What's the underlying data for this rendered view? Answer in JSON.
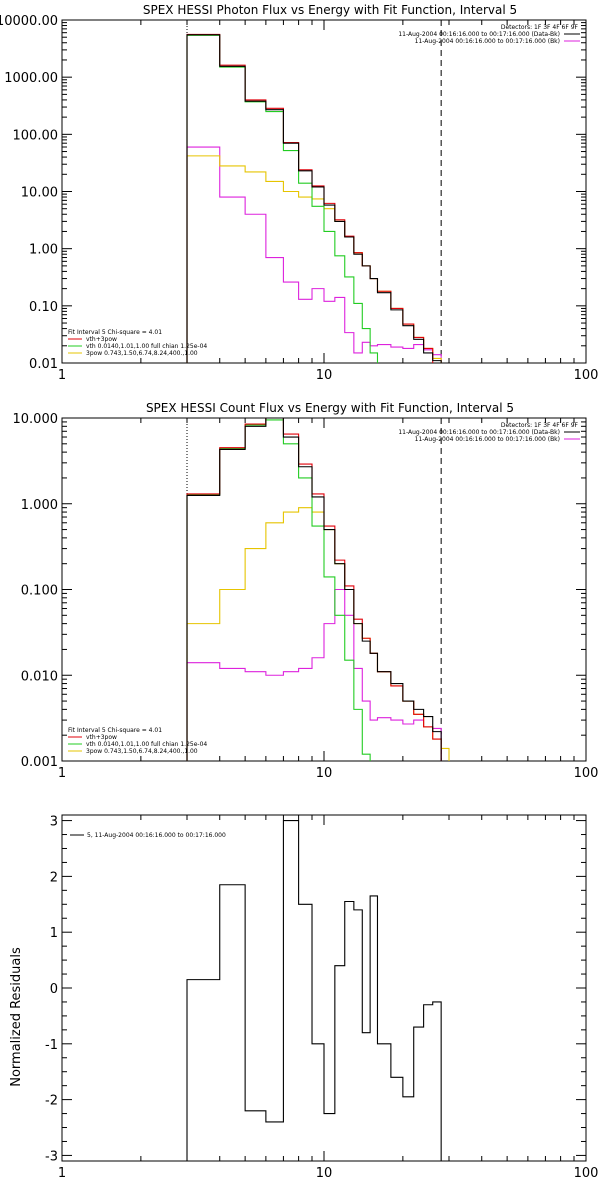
{
  "colors": {
    "data_black": "#000000",
    "vth_plus_3pow_red": "#e0000a",
    "vth_green": "#22cc22",
    "three_pow_yellow": "#e6c400",
    "bk_magenta": "#dd22dd"
  },
  "chart_data": [
    {
      "type": "line",
      "style": "histogram",
      "title": "SPEX HESSI Photon Flux vs Energy with Fit Function, Interval 5",
      "xscale": "log",
      "yscale": "log",
      "xlim": [
        1,
        100
      ],
      "ylim": [
        0.01,
        10000
      ],
      "x_tick_labels": [
        "1",
        "10",
        "100"
      ],
      "y_tick_labels": [
        "0.01",
        "0.10",
        "1.00",
        "10.00",
        "100.00",
        "1000.00",
        "10000.00"
      ],
      "x_tick_values": [
        1,
        10,
        100
      ],
      "y_tick_values": [
        0.01,
        0.1,
        1,
        10,
        100,
        1000,
        10000
      ],
      "vlines": [
        {
          "x": 3,
          "style": "dotted"
        },
        {
          "x": 28,
          "style": "dashed"
        }
      ],
      "legend_top_right": [
        {
          "text": "Detectors: 1F 3F 4F 6F 9F",
          "color": "#000000",
          "line": false
        },
        {
          "text": "11-Aug-2004 00:16:16.000 to 00:17:16.000 (Data-Bk)",
          "color": "#000000",
          "line": true
        },
        {
          "text": "11-Aug-2004 00:16:16.000 to 00:17:16.000 (Bk)",
          "color": "#dd22dd",
          "line": true
        }
      ],
      "legend_bottom_left": [
        {
          "text": "Fit Interval 5   Chi-square = 4.01",
          "color": "#000000",
          "line": false
        },
        {
          "text": "vth+3pow",
          "color": "#e0000a",
          "line": true
        },
        {
          "text": "vth 0.0140,1.01,1.00  full chian 1.25e-04",
          "color": "#22cc22",
          "line": true
        },
        {
          "text": "3pow 0.743,1.50,6.74,8.24,400.,1.00",
          "color": "#e6c400",
          "line": true
        }
      ],
      "edges": [
        3.0,
        4.0,
        5.0,
        6.0,
        7.0,
        8.0,
        9.0,
        10.0,
        11.0,
        12.0,
        13.0,
        14.0,
        15.0,
        16.0,
        18.0,
        20.0,
        22.0,
        24.0,
        26.0,
        28.0,
        30.0
      ],
      "series": [
        {
          "name": "Data-Bk",
          "color": "#000000",
          "values": [
            5500,
            1550,
            380,
            270,
            70,
            23,
            12,
            5.8,
            3.0,
            1.6,
            0.8,
            0.5,
            0.3,
            0.17,
            0.085,
            0.045,
            0.026,
            0.015,
            0.011
          ]
        },
        {
          "name": "vth+3pow",
          "color": "#e0000a",
          "values": [
            5600,
            1620,
            400,
            285,
            72,
            24,
            12.5,
            6.2,
            3.2,
            1.65,
            0.85,
            0.5,
            0.3,
            0.18,
            0.09,
            0.048,
            0.028,
            0.018
          ]
        },
        {
          "name": "vth",
          "color": "#22cc22",
          "values": [
            5400,
            1500,
            370,
            250,
            52,
            14,
            5.5,
            2.0,
            0.75,
            0.32,
            0.11,
            0.04,
            0.015
          ]
        },
        {
          "name": "3pow",
          "color": "#e6c400",
          "values": [
            42,
            28,
            22,
            15,
            10,
            8,
            7.4,
            5.0,
            3.0,
            1.6,
            0.85,
            0.5,
            0.3,
            0.18,
            0.09,
            0.048,
            0.028,
            0.018,
            0.012
          ]
        },
        {
          "name": "Bk",
          "color": "#dd22dd",
          "values": [
            60,
            8,
            4,
            0.7,
            0.26,
            0.13,
            0.2,
            0.12,
            0.14,
            0.034,
            0.015,
            0.023,
            0.02,
            0.021,
            0.019,
            0.018,
            0.021,
            0.017,
            0.014
          ]
        }
      ]
    },
    {
      "type": "line",
      "style": "histogram",
      "title": "SPEX HESSI Count Flux vs Energy with Fit Function, Interval 5",
      "xscale": "log",
      "yscale": "log",
      "xlim": [
        1,
        100
      ],
      "ylim": [
        0.001,
        10
      ],
      "x_tick_labels": [
        "1",
        "10",
        "100"
      ],
      "y_tick_labels": [
        "0.001",
        "0.010",
        "0.100",
        "1.000",
        "10.000"
      ],
      "x_tick_values": [
        1,
        10,
        100
      ],
      "y_tick_values": [
        0.001,
        0.01,
        0.1,
        1,
        10
      ],
      "vlines": [
        {
          "x": 3,
          "style": "dotted"
        },
        {
          "x": 28,
          "style": "dashed"
        }
      ],
      "legend_top_right": [
        {
          "text": "Detectors: 1F 3F 4F 6F 9F",
          "color": "#000000",
          "line": false
        },
        {
          "text": "11-Aug-2004 00:16:16.000 to 00:17:16.000 (Data-Bk)",
          "color": "#000000",
          "line": true
        },
        {
          "text": "11-Aug-2004 00:16:16.000 to 00:17:16.000 (Bk)",
          "color": "#dd22dd",
          "line": true
        }
      ],
      "legend_bottom_left": [
        {
          "text": "Fit Interval 5   Chi-square = 4.01",
          "color": "#000000",
          "line": false
        },
        {
          "text": "vth+3pow",
          "color": "#e0000a",
          "line": true
        },
        {
          "text": "vth 0.0140,1.01,1.00  full chian 1.25e-04",
          "color": "#22cc22",
          "line": true
        },
        {
          "text": "3pow 0.743,1.50,6.74,8.24,400.,1.00",
          "color": "#e6c400",
          "line": true
        }
      ],
      "edges": [
        3.0,
        4.0,
        5.0,
        6.0,
        7.0,
        8.0,
        9.0,
        10.0,
        11.0,
        12.0,
        13.0,
        14.0,
        15.0,
        16.0,
        18.0,
        20.0,
        22.0,
        24.0,
        26.0,
        28.0,
        30.0
      ],
      "series": [
        {
          "name": "Data-Bk",
          "color": "#000000",
          "values": [
            1.25,
            4.3,
            8.0,
            10.0,
            6.0,
            2.7,
            1.2,
            0.5,
            0.2,
            0.1,
            0.04,
            0.025,
            0.018,
            0.011,
            0.008,
            0.005,
            0.004,
            0.0033,
            0.0022
          ]
        },
        {
          "name": "vth+3pow",
          "color": "#e0000a",
          "values": [
            1.3,
            4.5,
            8.5,
            10.5,
            6.5,
            2.9,
            1.3,
            0.55,
            0.22,
            0.11,
            0.045,
            0.027,
            0.018,
            0.011,
            0.0075,
            0.005,
            0.0035,
            0.0025,
            0.0018
          ]
        },
        {
          "name": "vth",
          "color": "#22cc22",
          "values": [
            1.28,
            4.4,
            8.3,
            9.5,
            5.0,
            2.0,
            0.55,
            0.14,
            0.05,
            0.015,
            0.004,
            0.0012
          ]
        },
        {
          "name": "3pow",
          "color": "#e6c400",
          "values": [
            0.04,
            0.1,
            0.3,
            0.6,
            0.8,
            0.9,
            0.8,
            0.5,
            0.2,
            0.1,
            0.04,
            0.027,
            0.018,
            0.011,
            0.0075,
            0.005,
            0.0035,
            0.0025,
            0.0018,
            0.0014
          ]
        },
        {
          "name": "Bk",
          "color": "#dd22dd",
          "values": [
            0.014,
            0.012,
            0.011,
            0.01,
            0.011,
            0.012,
            0.016,
            0.04,
            0.1,
            0.05,
            0.012,
            0.005,
            0.003,
            0.0032,
            0.003,
            0.0027,
            0.003,
            0.0025,
            0.0024
          ]
        }
      ]
    },
    {
      "type": "line",
      "style": "histogram",
      "title": "",
      "ylabel": "Normalized Residuals",
      "xscale": "log",
      "yscale": "linear",
      "xlim": [
        1,
        100
      ],
      "ylim": [
        -3.1,
        3.1
      ],
      "x_tick_labels": [
        "1",
        "10",
        "100"
      ],
      "y_tick_labels": [
        "3",
        "2",
        "1",
        "0",
        "-1",
        "-2",
        "-3"
      ],
      "x_tick_values": [
        1,
        10,
        100
      ],
      "y_tick_values": [
        3,
        2,
        1,
        0,
        -1,
        -2,
        -3
      ],
      "legend_top_left": [
        {
          "text": "5, 11-Aug-2004 00:16:16.000 to 00:17:16.000",
          "color": "#000000",
          "line": true
        }
      ],
      "edges": [
        3.0,
        4.0,
        5.0,
        6.0,
        7.0,
        8.0,
        9.0,
        10.0,
        11.0,
        12.0,
        13.0,
        14.0,
        15.0,
        16.0,
        18.0,
        20.0,
        22.0,
        24.0,
        26.0,
        28.0
      ],
      "series": [
        {
          "name": "",
          "color": "#000000",
          "values": [
            0.15,
            1.85,
            -2.2,
            -2.4,
            3.0,
            1.5,
            -1.0,
            -2.25,
            0.4,
            1.55,
            1.4,
            -0.8,
            1.65,
            -1.0,
            -1.6,
            -1.95,
            -0.7,
            -0.3,
            -0.25
          ]
        }
      ]
    }
  ]
}
